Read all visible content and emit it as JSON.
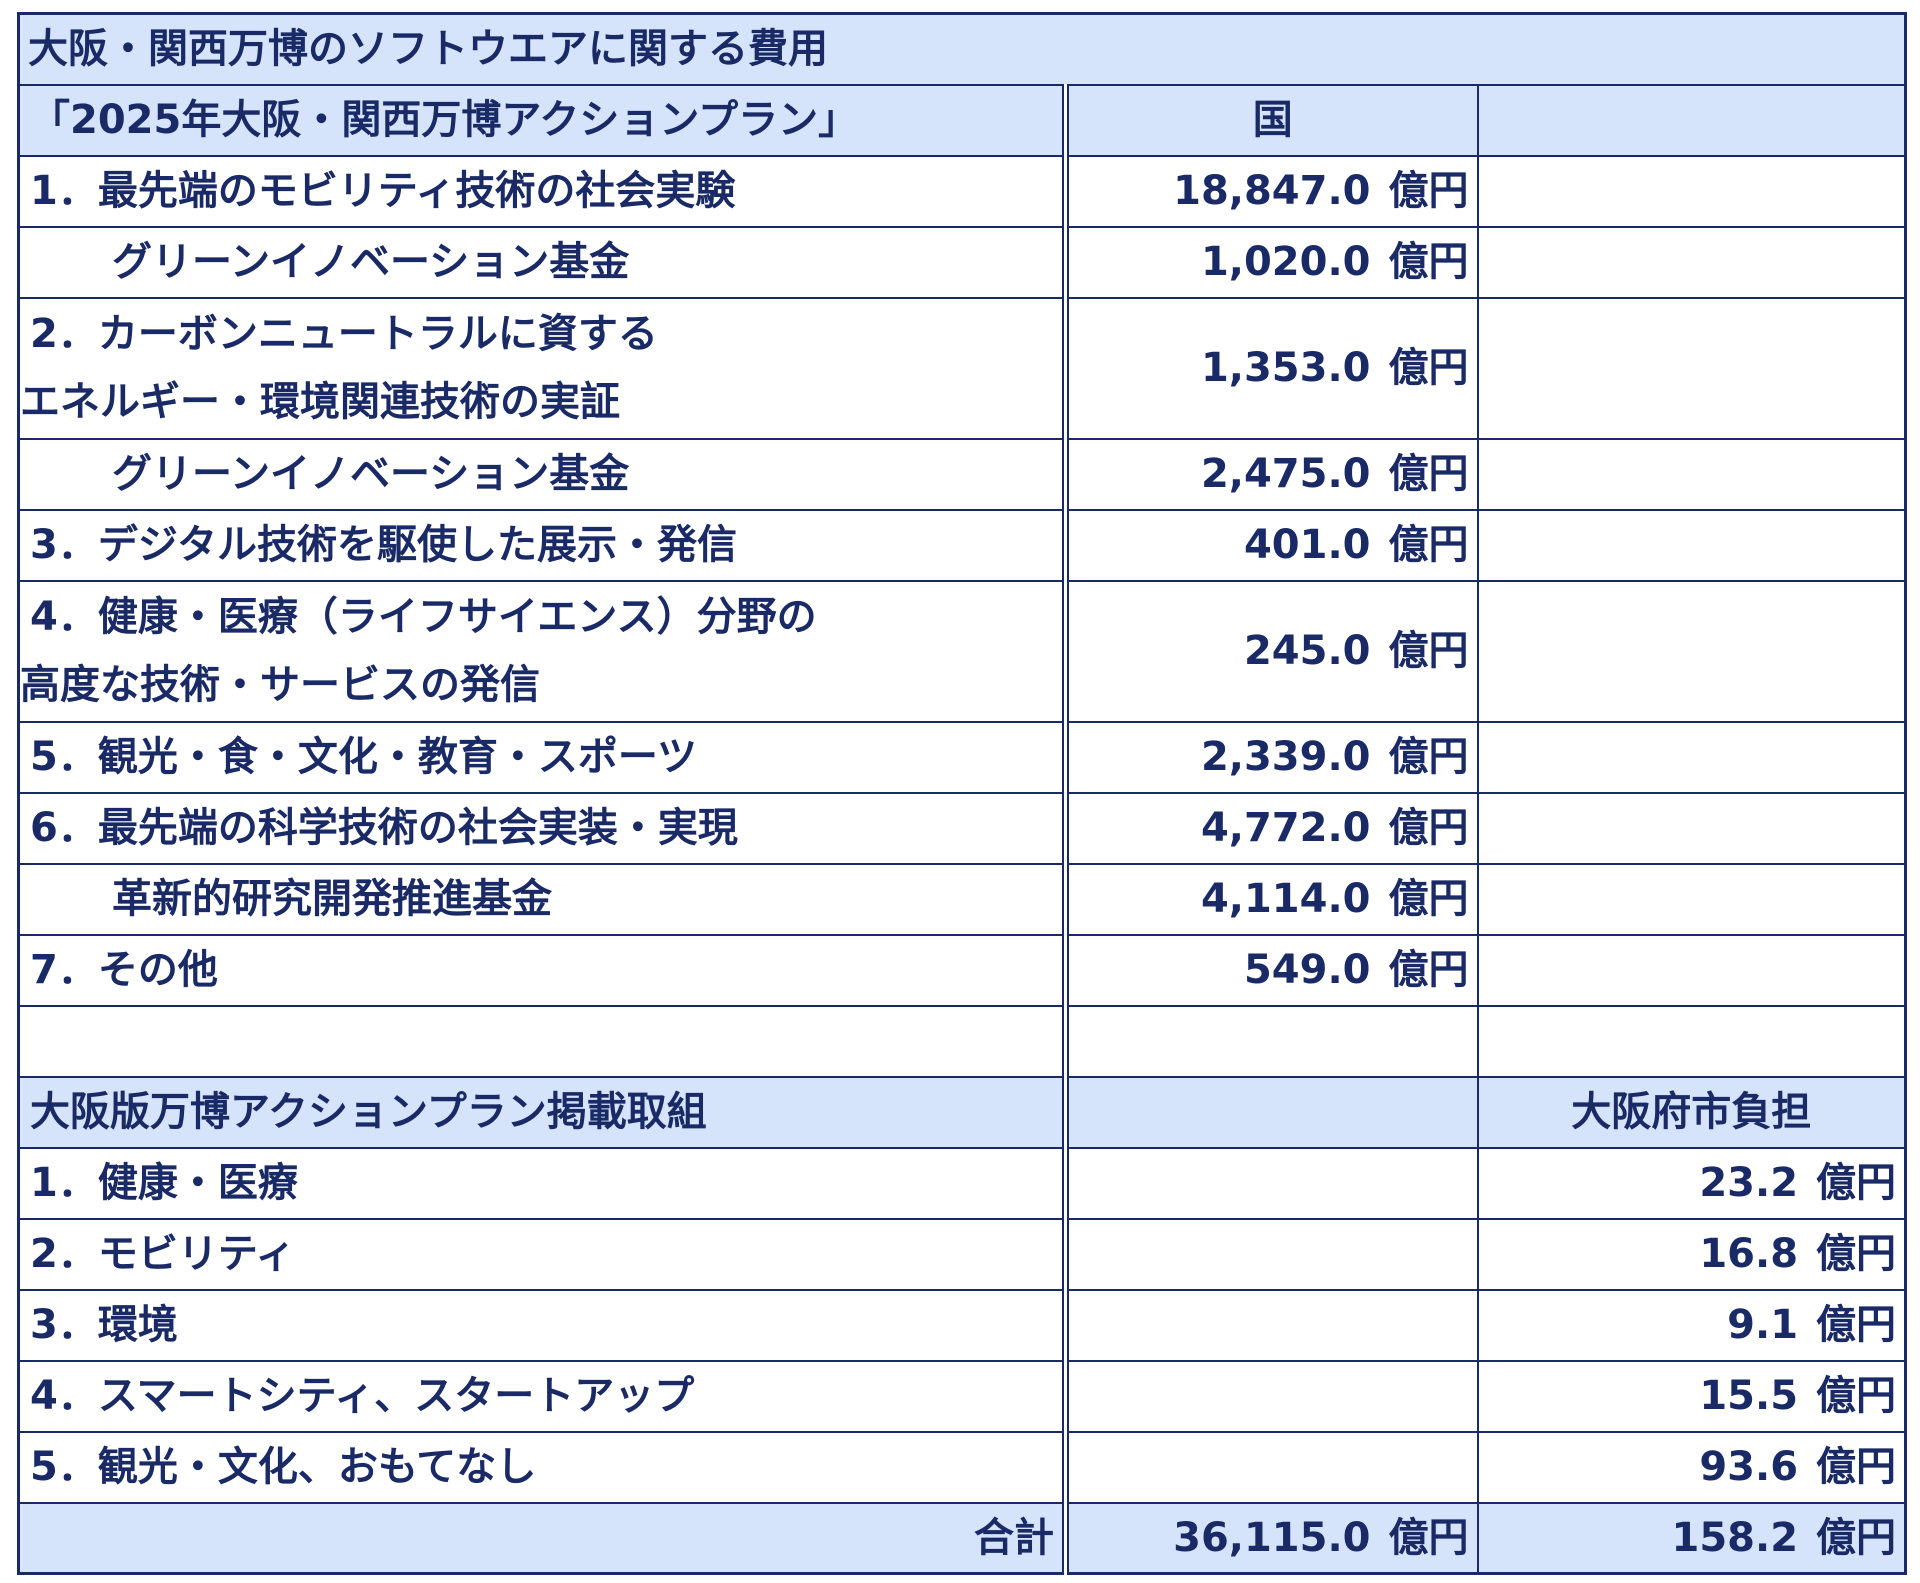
{
  "title": "大阪・関西万博のソフトウエアに関する費用",
  "national_section": {
    "header": "「2025年大阪・関西万博アクションプラン」",
    "col_national": "国",
    "col_osaka": "",
    "rows": [
      {
        "label": "1．最先端のモビリティ技術の社会実験",
        "value": "18,847.0",
        "unit": "億円"
      },
      {
        "label": "グリーンイノベーション基金",
        "value": "1,020.0",
        "unit": "億円"
      },
      {
        "label_line1": "2．カーボンニュートラルに資する",
        "label_line2": "エネルギー・環境関連技術の実証",
        "value": "1,353.0",
        "unit": "億円"
      },
      {
        "label": "グリーンイノベーション基金",
        "value": "2,475.0",
        "unit": "億円"
      },
      {
        "label": "3．デジタル技術を駆使した展示・発信",
        "value": "401.0",
        "unit": "億円"
      },
      {
        "label_line1": "4．健康・医療（ライフサイエンス）分野の",
        "label_line2": "高度な技術・サービスの発信",
        "value": "245.0",
        "unit": "億円"
      },
      {
        "label": "5．観光・食・文化・教育・スポーツ",
        "value": "2,339.0",
        "unit": "億円"
      },
      {
        "label": "6．最先端の科学技術の社会実装・実現",
        "value": "4,772.0",
        "unit": "億円"
      },
      {
        "label": "革新的研究開発推進基金",
        "value": "4,114.0",
        "unit": "億円"
      },
      {
        "label": "7．その他",
        "value": "549.0",
        "unit": "億円"
      }
    ]
  },
  "osaka_section": {
    "header": "大阪版万博アクションプラン掲載取組",
    "col_osaka": "大阪府市負担",
    "rows": [
      {
        "label": "1．健康・医療",
        "value": "23.2",
        "unit": "億円"
      },
      {
        "label": "2．モビリティ",
        "value": "16.8",
        "unit": "億円"
      },
      {
        "label": "3．環境",
        "value": "9.1",
        "unit": "億円"
      },
      {
        "label": "4．スマートシティ、スタートアップ",
        "value": "15.5",
        "unit": "億円"
      },
      {
        "label": "5．観光・文化、おもてなし",
        "value": "93.6",
        "unit": "億円"
      }
    ]
  },
  "total": {
    "label": "合計",
    "national_value": "36,115.0",
    "osaka_value": "158.2",
    "unit": "億円"
  },
  "colors": {
    "header_bg": "#d6e4fb",
    "text": "#1a2a66",
    "border": "#1a2a66"
  }
}
